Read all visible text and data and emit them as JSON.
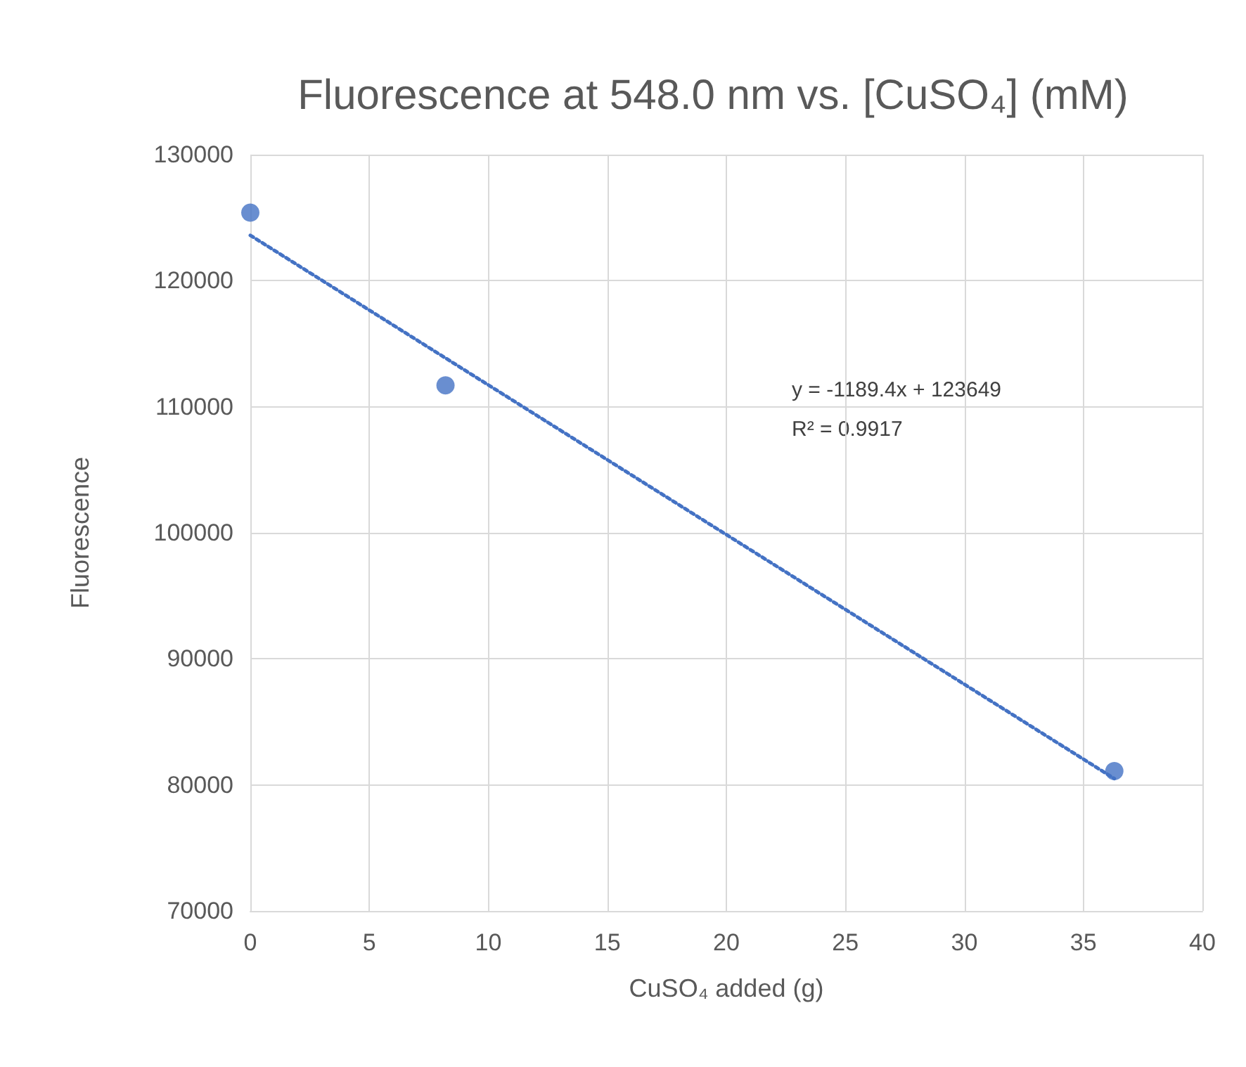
{
  "chart_data": {
    "type": "scatter",
    "title": "Fluorescence at 548.0 nm vs. [CuSO₄] (mM)",
    "xlabel": "CuSO₄ added (g)",
    "ylabel": "Fluorescence",
    "annotations": [
      "y = -1189.4x + 123649",
      "R² = 0.9917"
    ],
    "series": [
      {
        "color": "#4472c4",
        "marker": "circle",
        "x": [
          0,
          8.2,
          36.3
        ],
        "values": [
          125400,
          111700,
          81100
        ]
      },
      {
        "type": "line",
        "color": "#4472c4",
        "marker": "none",
        "line_style": "dotted",
        "x": [
          0,
          36.3
        ],
        "values": [
          123600,
          80500
        ]
      }
    ],
    "xlim": [
      0,
      40
    ],
    "xticks": [
      0,
      5,
      10,
      15,
      20,
      25,
      30,
      35,
      40
    ],
    "ylim": [
      70000,
      130000
    ],
    "yticks": [
      70000,
      80000,
      90000,
      100000,
      110000,
      120000,
      130000
    ],
    "grid": true
  }
}
